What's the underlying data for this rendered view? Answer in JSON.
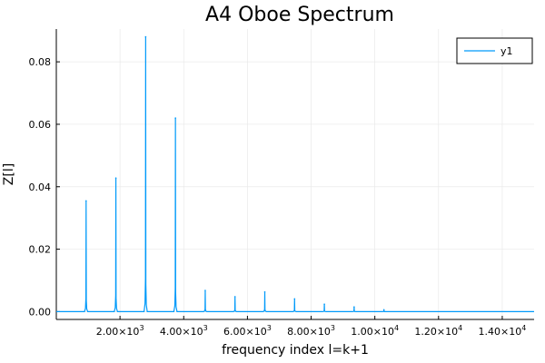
{
  "chart_data": {
    "type": "line",
    "title": "A4 Oboe Spectrum",
    "xlabel": "frequency index l=k+1",
    "ylabel": "Z[l]",
    "xlim": [
      0,
      15000
    ],
    "ylim": [
      -0.0025,
      0.0905
    ],
    "grid": true,
    "legend_position": "top-right",
    "series": [
      {
        "name": "y1",
        "color": "#009AFA",
        "peaks": [
          {
            "x": 935,
            "y": 0.0355
          },
          {
            "x": 1870,
            "y": 0.0428
          },
          {
            "x": 2805,
            "y": 0.088
          },
          {
            "x": 3740,
            "y": 0.062
          },
          {
            "x": 4675,
            "y": 0.0068
          },
          {
            "x": 5610,
            "y": 0.0048
          },
          {
            "x": 6545,
            "y": 0.0063
          },
          {
            "x": 7480,
            "y": 0.0041
          },
          {
            "x": 8415,
            "y": 0.0024
          },
          {
            "x": 9350,
            "y": 0.0015
          },
          {
            "x": 10285,
            "y": 0.0006
          }
        ],
        "baseline": 0.0
      }
    ],
    "x_ticks": [
      {
        "value": 2000,
        "mantissa": "2.00×10",
        "exp": "3"
      },
      {
        "value": 4000,
        "mantissa": "4.00×10",
        "exp": "3"
      },
      {
        "value": 6000,
        "mantissa": "6.00×10",
        "exp": "3"
      },
      {
        "value": 8000,
        "mantissa": "8.00×10",
        "exp": "3"
      },
      {
        "value": 10000,
        "mantissa": "1.00×10",
        "exp": "4"
      },
      {
        "value": 12000,
        "mantissa": "1.20×10",
        "exp": "4"
      },
      {
        "value": 14000,
        "mantissa": "1.40×10",
        "exp": "4"
      }
    ],
    "y_ticks": [
      {
        "value": 0.0,
        "label": "0.00"
      },
      {
        "value": 0.02,
        "label": "0.02"
      },
      {
        "value": 0.04,
        "label": "0.04"
      },
      {
        "value": 0.06,
        "label": "0.06"
      },
      {
        "value": 0.08,
        "label": "0.08"
      }
    ]
  }
}
